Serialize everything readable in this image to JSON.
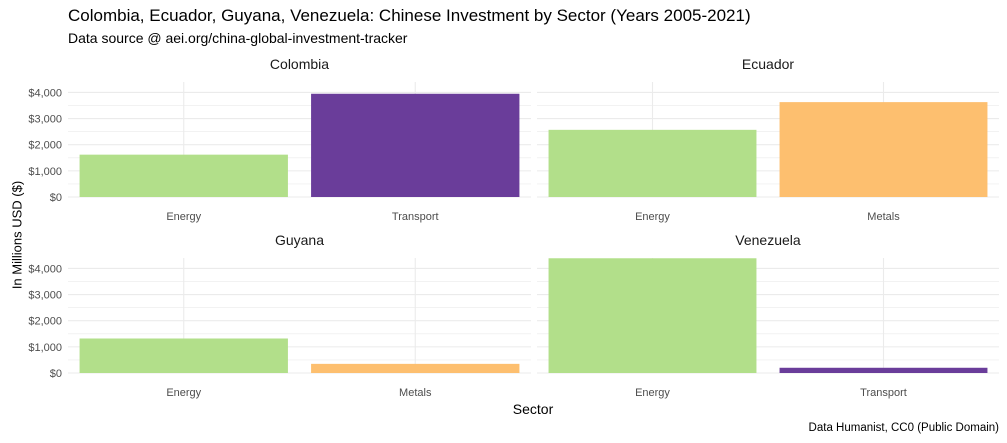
{
  "title": "Colombia, Ecuador, Guyana, Venezuela: Chinese Investment by Sector (Years 2005-2021)",
  "subtitle": "Data source @ aei.org/china-global-investment-tracker",
  "caption": "Data Humanist, CC0 (Public Domain)",
  "colors": {
    "Energy": "#b2df8a",
    "Transport": "#6a3d9a",
    "Metals": "#fdbf6f",
    "grid": "#ebebeb",
    "tick_text": "#4d4d4d"
  },
  "chart_data": {
    "type": "bar",
    "facet_layout": "2x2 grid, shared y axis",
    "xlabel": "Sector",
    "ylabel": "In Millions USD ($)",
    "ylim": [
      0,
      4400
    ],
    "y_ticks": [
      0,
      1000,
      2000,
      3000,
      4000
    ],
    "y_tick_labels": [
      "$0",
      "$1,000",
      "$2,000",
      "$3,000",
      "$4,000"
    ],
    "grid": true,
    "legend": "none",
    "panels": [
      {
        "title": "Colombia",
        "categories": [
          "Energy",
          "Transport"
        ],
        "values": [
          1620,
          3950
        ]
      },
      {
        "title": "Ecuador",
        "categories": [
          "Energy",
          "Metals"
        ],
        "values": [
          2570,
          3630
        ]
      },
      {
        "title": "Guyana",
        "categories": [
          "Energy",
          "Metals"
        ],
        "values": [
          1320,
          350
        ]
      },
      {
        "title": "Venezuela",
        "categories": [
          "Energy",
          "Transport"
        ],
        "values": [
          4390,
          200
        ]
      }
    ]
  }
}
